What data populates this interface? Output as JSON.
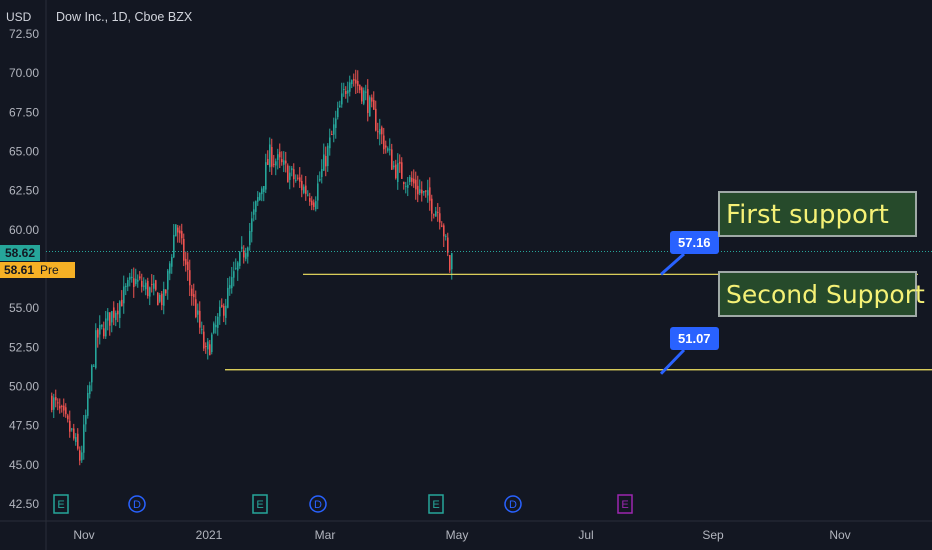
{
  "header": {
    "currency": "USD",
    "title": "Dow Inc., 1D, Cboe BZX"
  },
  "price_tags": {
    "last": "58.62",
    "pre_value": "58.61",
    "pre_label": "Pre"
  },
  "annotations": {
    "callout_first": "57.16",
    "callout_second": "51.07",
    "note_first": "First support",
    "note_second": "Second Support"
  },
  "colors": {
    "background": "#131722",
    "up": "#26a69a",
    "down": "#ef5350",
    "support_line": "#f5e663",
    "callout": "#2962ff"
  },
  "chart_data": {
    "type": "candlestick",
    "title": "Dow Inc., 1D, Cboe BZX",
    "ylim": [
      41.8,
      73.1
    ],
    "y_ticks": [
      "72.50",
      "70.00",
      "67.50",
      "65.00",
      "62.50",
      "60.00",
      "57.50",
      "55.00",
      "52.50",
      "50.00",
      "47.50",
      "45.00",
      "42.50"
    ],
    "x_ticks": [
      "Nov",
      "Dec",
      "2021",
      "Feb",
      "Mar",
      "Apr",
      "May",
      "Jun",
      "Jul",
      "Aug",
      "Sep",
      "Oct",
      "Nov"
    ],
    "x_tick_labels_shown": [
      "Nov",
      "2021",
      "Mar",
      "May",
      "Jul",
      "Sep",
      "Nov"
    ],
    "event_markers": [
      {
        "label": "E",
        "month": "Oct",
        "day": 22,
        "type": "earnings"
      },
      {
        "label": "D",
        "month": "Nov",
        "day": 27,
        "type": "dividend"
      },
      {
        "label": "E",
        "month": "Jan",
        "day": 28,
        "type": "earnings"
      },
      {
        "label": "D",
        "month": "Feb",
        "day": 25,
        "type": "dividend"
      },
      {
        "label": "E",
        "month": "Apr",
        "day": 22,
        "type": "earnings"
      },
      {
        "label": "D",
        "month": "May",
        "day": 27,
        "type": "dividend"
      },
      {
        "label": "E",
        "month": "Jul",
        "day": 22,
        "type": "earnings-upcoming"
      }
    ],
    "support_levels": [
      {
        "name": "First support",
        "value": 57.16
      },
      {
        "name": "Second Support",
        "value": 51.07
      }
    ],
    "key_closes": [
      {
        "date": "2020-10-13",
        "close": 49.2
      },
      {
        "date": "2020-10-27",
        "close": 47.0
      },
      {
        "date": "2020-11-02",
        "close": 45.3
      },
      {
        "date": "2020-11-13",
        "close": 53.0
      },
      {
        "date": "2020-12-09",
        "close": 56.8
      },
      {
        "date": "2020-12-31",
        "close": 55.5
      },
      {
        "date": "2021-01-08",
        "close": 60.5
      },
      {
        "date": "2021-01-29",
        "close": 52.0
      },
      {
        "date": "2021-02-26",
        "close": 59.0
      },
      {
        "date": "2021-03-15",
        "close": 64.8
      },
      {
        "date": "2021-04-15",
        "close": 62.0
      },
      {
        "date": "2021-05-10",
        "close": 70.0
      },
      {
        "date": "2021-05-21",
        "close": 68.5
      },
      {
        "date": "2021-06-10",
        "close": 64.0
      },
      {
        "date": "2021-06-25",
        "close": 62.8
      },
      {
        "date": "2021-07-13",
        "close": 61.0
      },
      {
        "date": "2021-07-19",
        "close": 57.5
      },
      {
        "date": "2021-07-21",
        "close": 58.62
      }
    ],
    "last_price": 58.62,
    "premarket_price": 58.61
  }
}
